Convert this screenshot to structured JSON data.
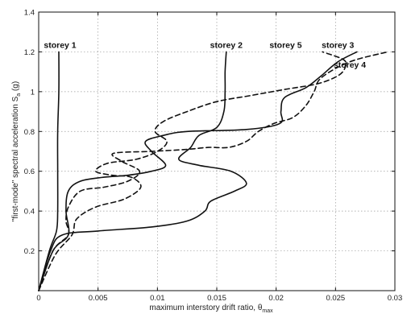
{
  "chart_data": {
    "type": "line",
    "title": "",
    "xlabel": "maximum interstory drift ratio, θ",
    "xlabel_sub": "max",
    "ylabel": "\"first-mode\" spectral acceleration S",
    "ylabel_sub": "a",
    "ylabel_unit": " (g)",
    "xlim": [
      0,
      0.03
    ],
    "ylim": [
      0,
      1.4
    ],
    "grid": true,
    "legend": "none",
    "xticks": [
      {
        "v": 0,
        "label": "0"
      },
      {
        "v": 0.005,
        "label": "0.005"
      },
      {
        "v": 0.01,
        "label": "0.01"
      },
      {
        "v": 0.015,
        "label": "0.015"
      },
      {
        "v": 0.02,
        "label": "0.02"
      },
      {
        "v": 0.025,
        "label": "0.025"
      },
      {
        "v": 0.03,
        "label": "0.03"
      }
    ],
    "yticks": [
      {
        "v": 0.2,
        "label": "0.2"
      },
      {
        "v": 0.4,
        "label": "0.4"
      },
      {
        "v": 0.6,
        "label": "0.6"
      },
      {
        "v": 0.8,
        "label": "0.8"
      },
      {
        "v": 1.0,
        "label": "1"
      },
      {
        "v": 1.2,
        "label": "1.2"
      },
      {
        "v": 1.4,
        "label": "1.4"
      }
    ],
    "series": [
      {
        "name": "storey 1",
        "style": "solid",
        "label": {
          "text": "storey 1",
          "x": 0.0018,
          "y": 1.22
        },
        "points": [
          [
            0,
            0
          ],
          [
            0.0009,
            0.2
          ],
          [
            0.0015,
            0.3
          ],
          [
            0.0016,
            0.4
          ],
          [
            0.0016,
            0.6
          ],
          [
            0.0016,
            0.8
          ],
          [
            0.0017,
            1.0
          ],
          [
            0.0017,
            1.2
          ]
        ]
      },
      {
        "name": "storey 2",
        "style": "solid",
        "label": {
          "text": "storey 2",
          "x": 0.0158,
          "y": 1.22
        },
        "points": [
          [
            0,
            0
          ],
          [
            0.001,
            0.2
          ],
          [
            0.002,
            0.28
          ],
          [
            0.005,
            0.3
          ],
          [
            0.0095,
            0.32
          ],
          [
            0.0125,
            0.35
          ],
          [
            0.014,
            0.4
          ],
          [
            0.0145,
            0.45
          ],
          [
            0.0165,
            0.5
          ],
          [
            0.0175,
            0.54
          ],
          [
            0.0162,
            0.6
          ],
          [
            0.0135,
            0.63
          ],
          [
            0.0118,
            0.66
          ],
          [
            0.0128,
            0.72
          ],
          [
            0.0135,
            0.78
          ],
          [
            0.015,
            0.82
          ],
          [
            0.0156,
            0.9
          ],
          [
            0.0157,
            1.0
          ],
          [
            0.0157,
            1.1
          ],
          [
            0.0158,
            1.2
          ]
        ]
      },
      {
        "name": "storey 3",
        "style": "solid",
        "label": {
          "text": "storey 3",
          "x": 0.0252,
          "y": 1.22
        },
        "points": [
          [
            0,
            0
          ],
          [
            0.0012,
            0.2
          ],
          [
            0.0025,
            0.28
          ],
          [
            0.0023,
            0.4
          ],
          [
            0.0025,
            0.5
          ],
          [
            0.0035,
            0.55
          ],
          [
            0.0055,
            0.57
          ],
          [
            0.0075,
            0.58
          ],
          [
            0.0095,
            0.6
          ],
          [
            0.0107,
            0.63
          ],
          [
            0.0095,
            0.7
          ],
          [
            0.009,
            0.75
          ],
          [
            0.0105,
            0.78
          ],
          [
            0.0125,
            0.8
          ],
          [
            0.0175,
            0.81
          ],
          [
            0.0203,
            0.84
          ],
          [
            0.0204,
            0.9
          ],
          [
            0.0207,
            0.97
          ],
          [
            0.0225,
            1.02
          ],
          [
            0.0238,
            1.08
          ],
          [
            0.0252,
            1.15
          ],
          [
            0.0268,
            1.2
          ]
        ]
      },
      {
        "name": "storey 4",
        "style": "dashed",
        "label": {
          "text": "storey 4",
          "x": 0.0262,
          "y": 1.12
        },
        "points": [
          [
            0,
            0
          ],
          [
            0.0012,
            0.2
          ],
          [
            0.0025,
            0.28
          ],
          [
            0.0023,
            0.35
          ],
          [
            0.0025,
            0.42
          ],
          [
            0.0035,
            0.5
          ],
          [
            0.0055,
            0.52
          ],
          [
            0.0075,
            0.55
          ],
          [
            0.0085,
            0.6
          ],
          [
            0.007,
            0.65
          ],
          [
            0.0063,
            0.69
          ],
          [
            0.0095,
            0.7
          ],
          [
            0.0125,
            0.71
          ],
          [
            0.0143,
            0.72
          ],
          [
            0.016,
            0.72
          ],
          [
            0.0175,
            0.75
          ],
          [
            0.0185,
            0.8
          ],
          [
            0.0198,
            0.84
          ],
          [
            0.0214,
            0.87
          ],
          [
            0.0225,
            0.93
          ],
          [
            0.0232,
            1.0
          ],
          [
            0.0238,
            1.07
          ],
          [
            0.0262,
            1.15
          ],
          [
            0.0294,
            1.2
          ]
        ]
      },
      {
        "name": "storey 5",
        "style": "dashed",
        "label": {
          "text": "storey 5",
          "x": 0.0208,
          "y": 1.22
        },
        "points": [
          [
            0,
            0
          ],
          [
            0.0014,
            0.18
          ],
          [
            0.0028,
            0.28
          ],
          [
            0.0032,
            0.36
          ],
          [
            0.0048,
            0.42
          ],
          [
            0.0072,
            0.46
          ],
          [
            0.0086,
            0.52
          ],
          [
            0.0078,
            0.57
          ],
          [
            0.0062,
            0.58
          ],
          [
            0.0048,
            0.6
          ],
          [
            0.0058,
            0.64
          ],
          [
            0.0082,
            0.66
          ],
          [
            0.01,
            0.7
          ],
          [
            0.0108,
            0.75
          ],
          [
            0.0098,
            0.8
          ],
          [
            0.0105,
            0.85
          ],
          [
            0.0125,
            0.9
          ],
          [
            0.015,
            0.95
          ],
          [
            0.0178,
            0.98
          ],
          [
            0.0206,
            1.01
          ],
          [
            0.0235,
            1.04
          ],
          [
            0.0252,
            1.08
          ],
          [
            0.0258,
            1.12
          ],
          [
            0.0257,
            1.16
          ],
          [
            0.0239,
            1.2
          ]
        ]
      }
    ]
  }
}
